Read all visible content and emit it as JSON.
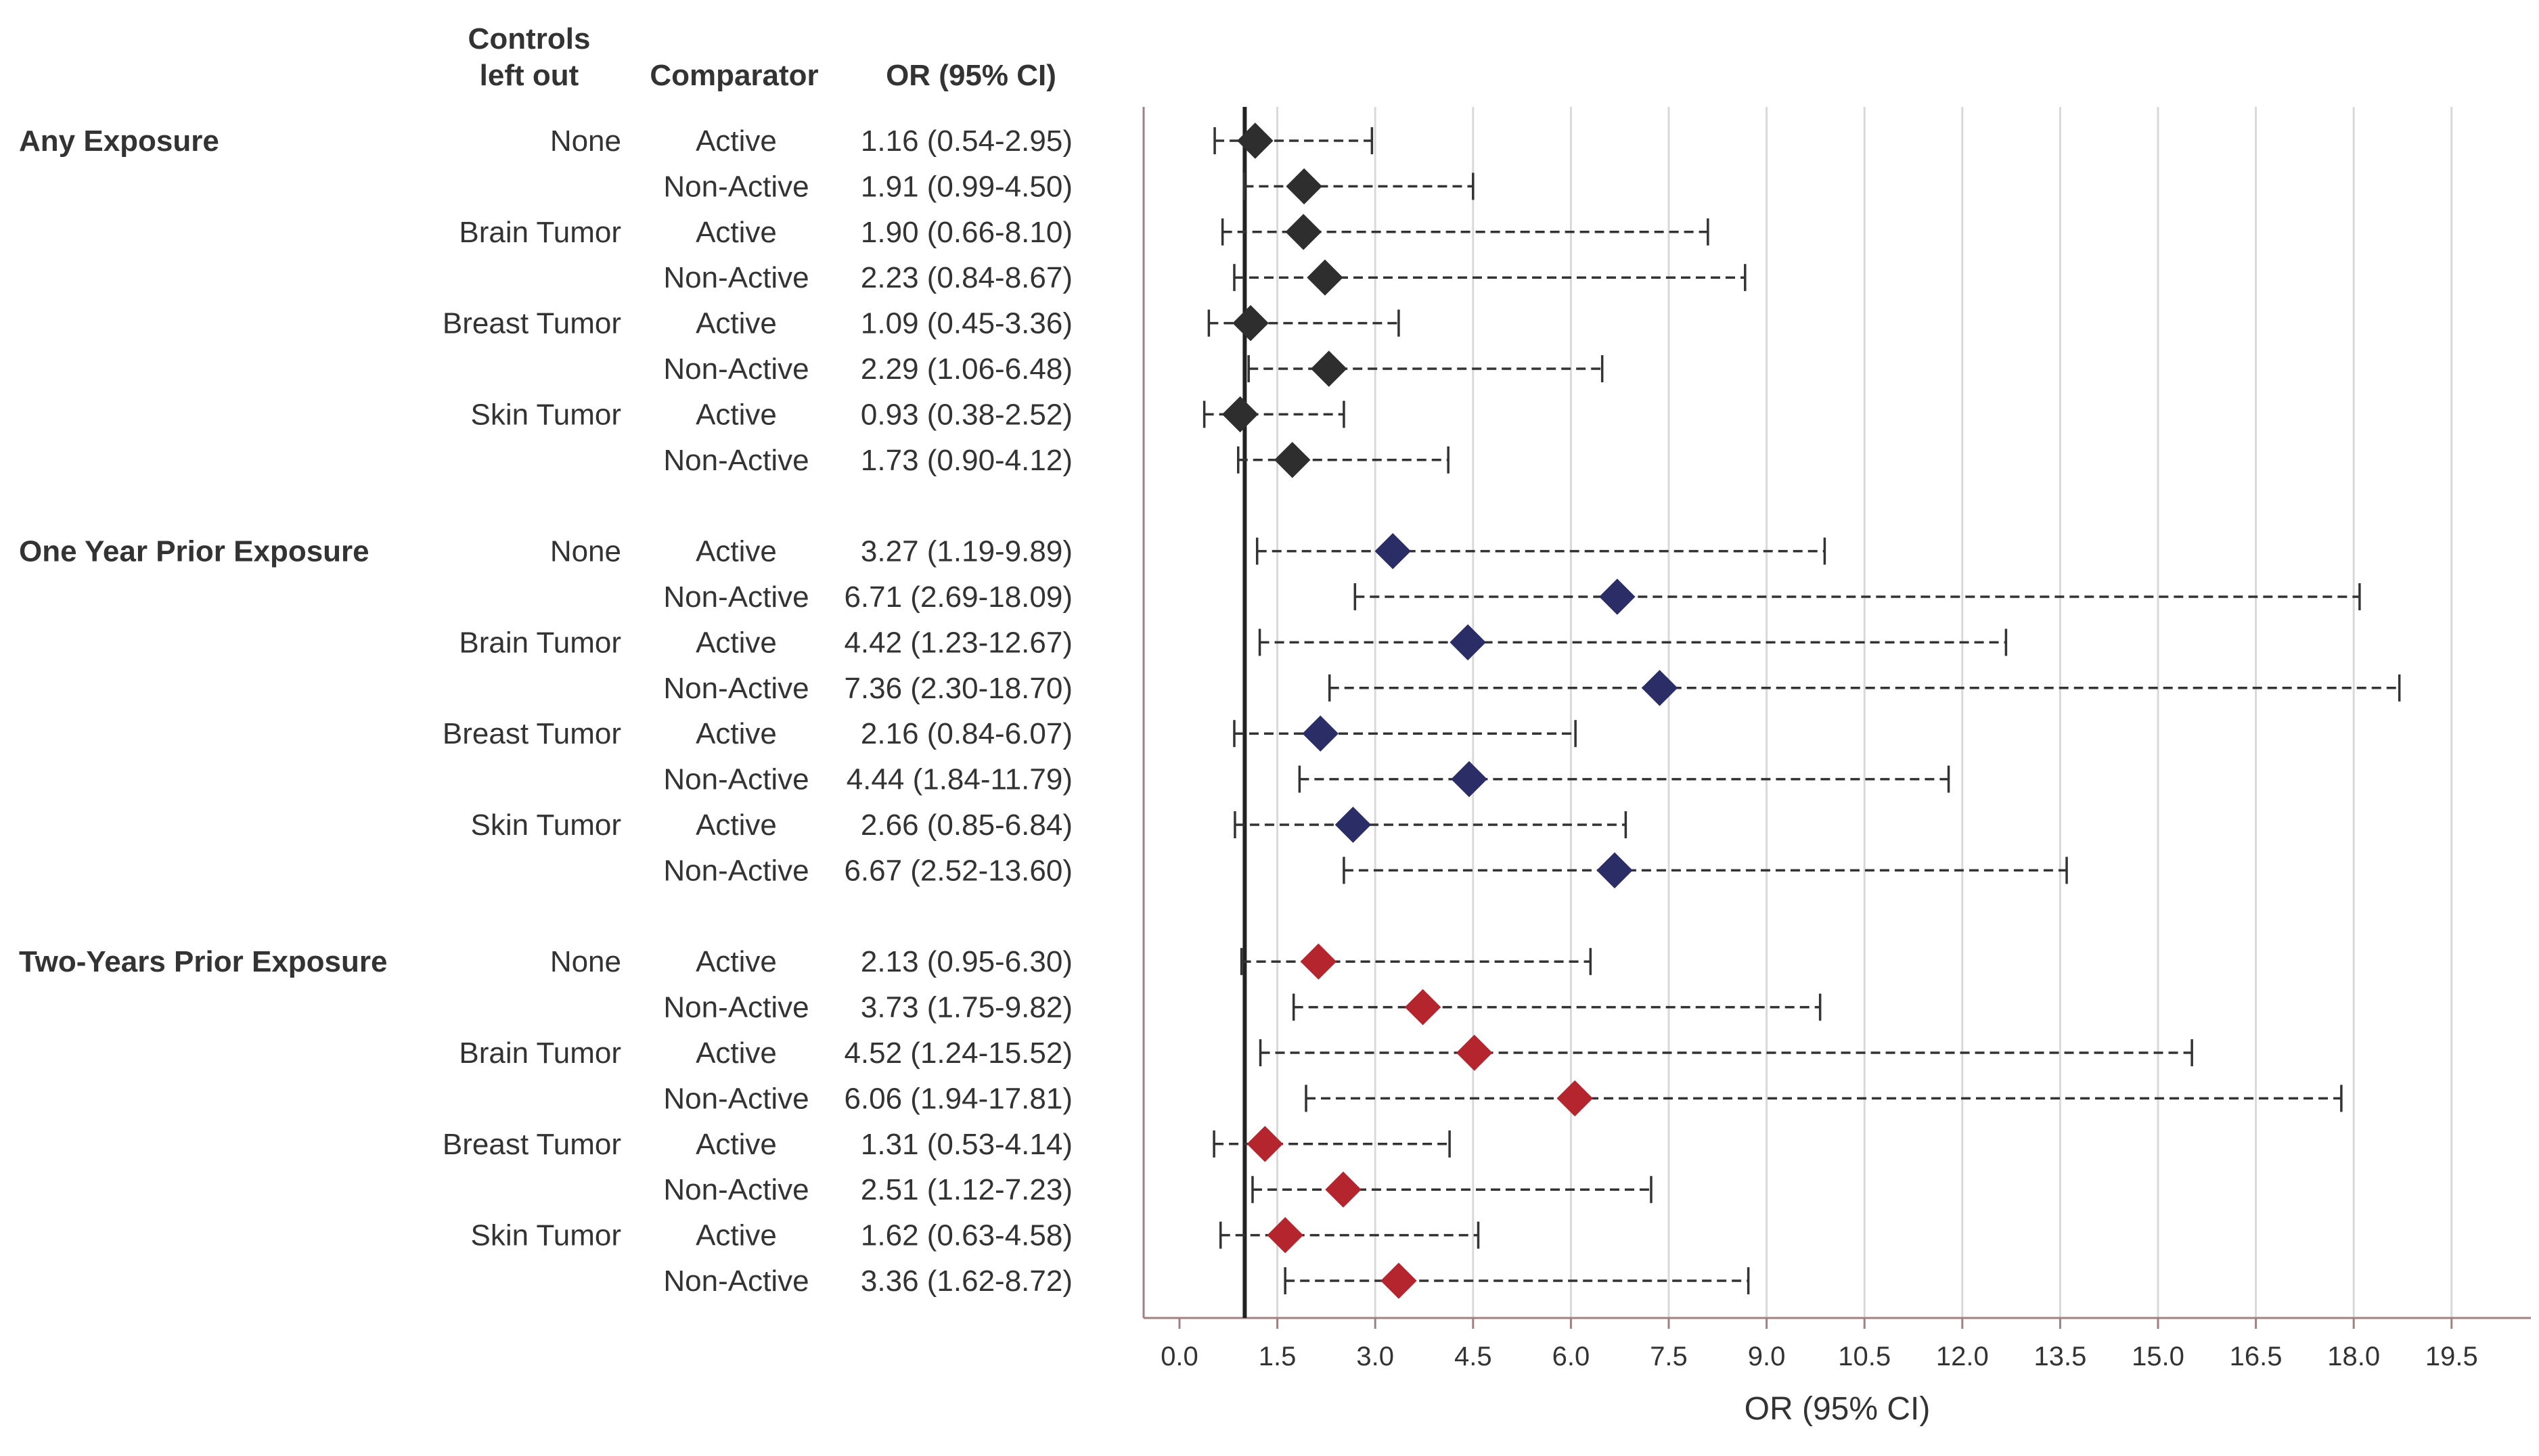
{
  "chart_data": {
    "type": "forest",
    "xlabel": "OR (95% CI)",
    "xlim": [
      -0.5,
      20.0
    ],
    "xticks": [
      0.0,
      1.5,
      3.0,
      4.5,
      6.0,
      7.5,
      9.0,
      10.5,
      12.0,
      13.5,
      15.0,
      16.5,
      18.0,
      19.5
    ],
    "xtick_labels": [
      "0.0",
      "1.5",
      "3.0",
      "4.5",
      "6.0",
      "7.5",
      "9.0",
      "10.5",
      "12.0",
      "13.5",
      "15.0",
      "16.5",
      "18.0",
      "19.5"
    ],
    "reference_line": 1.0,
    "grid": "vertical",
    "columns": {
      "controls": "Controls left out",
      "controls_line1": "Controls",
      "controls_line2": "left out",
      "comparator": "Comparator",
      "or": "OR (95% CI)"
    },
    "groups": [
      {
        "label": "Any Exposure",
        "color": "#2e2e2e",
        "rows": [
          {
            "controls": "None",
            "comparator": "Active",
            "or_text": "1.16 (0.54-2.95)",
            "or": 1.16,
            "lo": 0.54,
            "hi": 2.95
          },
          {
            "controls": "",
            "comparator": "Non-Active",
            "or_text": "1.91 (0.99-4.50)",
            "or": 1.91,
            "lo": 0.99,
            "hi": 4.5
          },
          {
            "controls": "Brain Tumor",
            "comparator": "Active",
            "or_text": "1.90 (0.66-8.10)",
            "or": 1.9,
            "lo": 0.66,
            "hi": 8.1
          },
          {
            "controls": "",
            "comparator": "Non-Active",
            "or_text": "2.23 (0.84-8.67)",
            "or": 2.23,
            "lo": 0.84,
            "hi": 8.67
          },
          {
            "controls": "Breast Tumor",
            "comparator": "Active",
            "or_text": "1.09 (0.45-3.36)",
            "or": 1.09,
            "lo": 0.45,
            "hi": 3.36
          },
          {
            "controls": "",
            "comparator": "Non-Active",
            "or_text": "2.29 (1.06-6.48)",
            "or": 2.29,
            "lo": 1.06,
            "hi": 6.48
          },
          {
            "controls": "Skin Tumor",
            "comparator": "Active",
            "or_text": "0.93 (0.38-2.52)",
            "or": 0.93,
            "lo": 0.38,
            "hi": 2.52
          },
          {
            "controls": "",
            "comparator": "Non-Active",
            "or_text": "1.73 (0.90-4.12)",
            "or": 1.73,
            "lo": 0.9,
            "hi": 4.12
          }
        ]
      },
      {
        "label": "One Year Prior Exposure",
        "color": "#2b2d66",
        "rows": [
          {
            "controls": "None",
            "comparator": "Active",
            "or_text": "3.27 (1.19-9.89)",
            "or": 3.27,
            "lo": 1.19,
            "hi": 9.89
          },
          {
            "controls": "",
            "comparator": "Non-Active",
            "or_text": "6.71 (2.69-18.09)",
            "or": 6.71,
            "lo": 2.69,
            "hi": 18.09
          },
          {
            "controls": "Brain Tumor",
            "comparator": "Active",
            "or_text": "4.42 (1.23-12.67)",
            "or": 4.42,
            "lo": 1.23,
            "hi": 12.67
          },
          {
            "controls": "",
            "comparator": "Non-Active",
            "or_text": "7.36 (2.30-18.70)",
            "or": 7.36,
            "lo": 2.3,
            "hi": 18.7
          },
          {
            "controls": "Breast Tumor",
            "comparator": "Active",
            "or_text": "2.16 (0.84-6.07)",
            "or": 2.16,
            "lo": 0.84,
            "hi": 6.07
          },
          {
            "controls": "",
            "comparator": "Non-Active",
            "or_text": "4.44 (1.84-11.79)",
            "or": 4.44,
            "lo": 1.84,
            "hi": 11.79
          },
          {
            "controls": "Skin Tumor",
            "comparator": "Active",
            "or_text": "2.66 (0.85-6.84)",
            "or": 2.66,
            "lo": 0.85,
            "hi": 6.84
          },
          {
            "controls": "",
            "comparator": "Non-Active",
            "or_text": "6.67 (2.52-13.60)",
            "or": 6.67,
            "lo": 2.52,
            "hi": 13.6
          }
        ]
      },
      {
        "label": "Two-Years Prior Exposure",
        "color": "#b5252d",
        "rows": [
          {
            "controls": "None",
            "comparator": "Active",
            "or_text": "2.13 (0.95-6.30)",
            "or": 2.13,
            "lo": 0.95,
            "hi": 6.3
          },
          {
            "controls": "",
            "comparator": "Non-Active",
            "or_text": "3.73 (1.75-9.82)",
            "or": 3.73,
            "lo": 1.75,
            "hi": 9.82
          },
          {
            "controls": "Brain Tumor",
            "comparator": "Active",
            "or_text": "4.52 (1.24-15.52)",
            "or": 4.52,
            "lo": 1.24,
            "hi": 15.52
          },
          {
            "controls": "",
            "comparator": "Non-Active",
            "or_text": "6.06 (1.94-17.81)",
            "or": 6.06,
            "lo": 1.94,
            "hi": 17.81
          },
          {
            "controls": "Breast Tumor",
            "comparator": "Active",
            "or_text": "1.31 (0.53-4.14)",
            "or": 1.31,
            "lo": 0.53,
            "hi": 4.14
          },
          {
            "controls": "",
            "comparator": "Non-Active",
            "or_text": "2.51 (1.12-7.23)",
            "or": 2.51,
            "lo": 1.12,
            "hi": 7.23
          },
          {
            "controls": "Skin Tumor",
            "comparator": "Active",
            "or_text": "1.62 (0.63-4.58)",
            "or": 1.62,
            "lo": 0.63,
            "hi": 4.58
          },
          {
            "controls": "",
            "comparator": "Non-Active",
            "or_text": "3.36 (1.62-8.72)",
            "or": 3.36,
            "lo": 1.62,
            "hi": 8.72
          }
        ]
      }
    ]
  }
}
